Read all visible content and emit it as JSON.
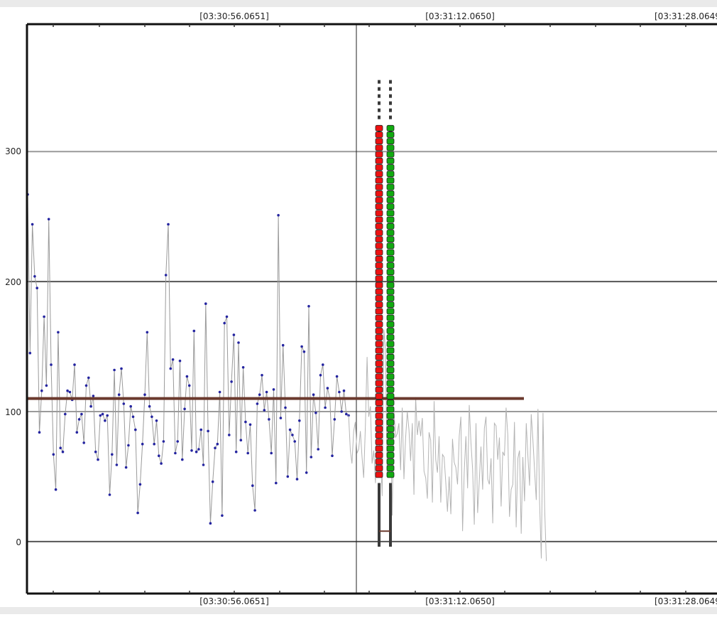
{
  "chart_data": {
    "type": "line",
    "title": "",
    "xlabel": "",
    "ylabel": "",
    "time_ticks": [
      "[03:30:56.0651]",
      "[03:31:12.0650]",
      "[03:31:28.0649]"
    ],
    "y_ticks": [
      "0",
      "100",
      "200",
      "300"
    ],
    "ylim": [
      -40,
      398
    ],
    "grid": true,
    "reference_line": {
      "value": 110,
      "color": "#6b3a2e"
    },
    "series": [
      {
        "marker": "dot",
        "color": "#9a9a9a",
        "marker_color": "#2424a0",
        "values": [
          267,
          145,
          244,
          204,
          195,
          84,
          116,
          173,
          120,
          248,
          136,
          67,
          40,
          161,
          72,
          69,
          98,
          116,
          115,
          109,
          136,
          84,
          94,
          98,
          76,
          120,
          126,
          104,
          112,
          69,
          63,
          97,
          98,
          93,
          97,
          36,
          67,
          132,
          59,
          113,
          133,
          106,
          57,
          74,
          104,
          96,
          86,
          22,
          44,
          75,
          113,
          161,
          104,
          96,
          75,
          93,
          66,
          60,
          77,
          205,
          244,
          133,
          140,
          68,
          77,
          139,
          63,
          102,
          127,
          120,
          70,
          162,
          69,
          71,
          86,
          59,
          183,
          85,
          14,
          46,
          72,
          75,
          115,
          20,
          168,
          173,
          82,
          123,
          159,
          69,
          153,
          78,
          134,
          92,
          68,
          90,
          43,
          24,
          106,
          113,
          128,
          101,
          115,
          94,
          68,
          117,
          45,
          251,
          95,
          151,
          103,
          50,
          86,
          82,
          77,
          48,
          93,
          150,
          146,
          53,
          181,
          65,
          113,
          99,
          71,
          128,
          136,
          103,
          118,
          110,
          66,
          94,
          127,
          115,
          100,
          116,
          98,
          97
        ]
      },
      {
        "marker": "none",
        "color": "#b4b4b4",
        "values": [
          70,
          60,
          85,
          92,
          68,
          71,
          85,
          65,
          49,
          89,
          142,
          96,
          104,
          60,
          70,
          45,
          97,
          79,
          67,
          35,
          163,
          148,
          50,
          100,
          94,
          20,
          102,
          80,
          83,
          91,
          55,
          103,
          48,
          79,
          100,
          86,
          62,
          91,
          36,
          111,
          82,
          93,
          81,
          95,
          54,
          49,
          33,
          84,
          78,
          30,
          108,
          63,
          53,
          81,
          30,
          67,
          65,
          45,
          23,
          50,
          21,
          79,
          61,
          57,
          44,
          81,
          96,
          8,
          53,
          81,
          41,
          105,
          76,
          56,
          13,
          91,
          22,
          47,
          73,
          40,
          87,
          96,
          48,
          44,
          64,
          14,
          91,
          89,
          63,
          80,
          27,
          69,
          66,
          103,
          82,
          19,
          40,
          44,
          92,
          11,
          64,
          70,
          6,
          65,
          31,
          91,
          66,
          43,
          98,
          78,
          54,
          32,
          102,
          30,
          -13,
          99,
          26,
          -15
        ]
      }
    ],
    "overlay": {
      "dark_dash_top": 355,
      "dark_dash_bottom": 323,
      "dark_solid_top": 311,
      "red_top": 318,
      "red_bottom": 47,
      "green_top": 318,
      "green_bottom": 47,
      "dark_lower_top": 45,
      "dark_lower_bottom": -4,
      "brown_bar_value": 8,
      "red_color": "#ee1111",
      "green_color": "#11aa11",
      "dark_color": "#3a3a3a"
    }
  }
}
